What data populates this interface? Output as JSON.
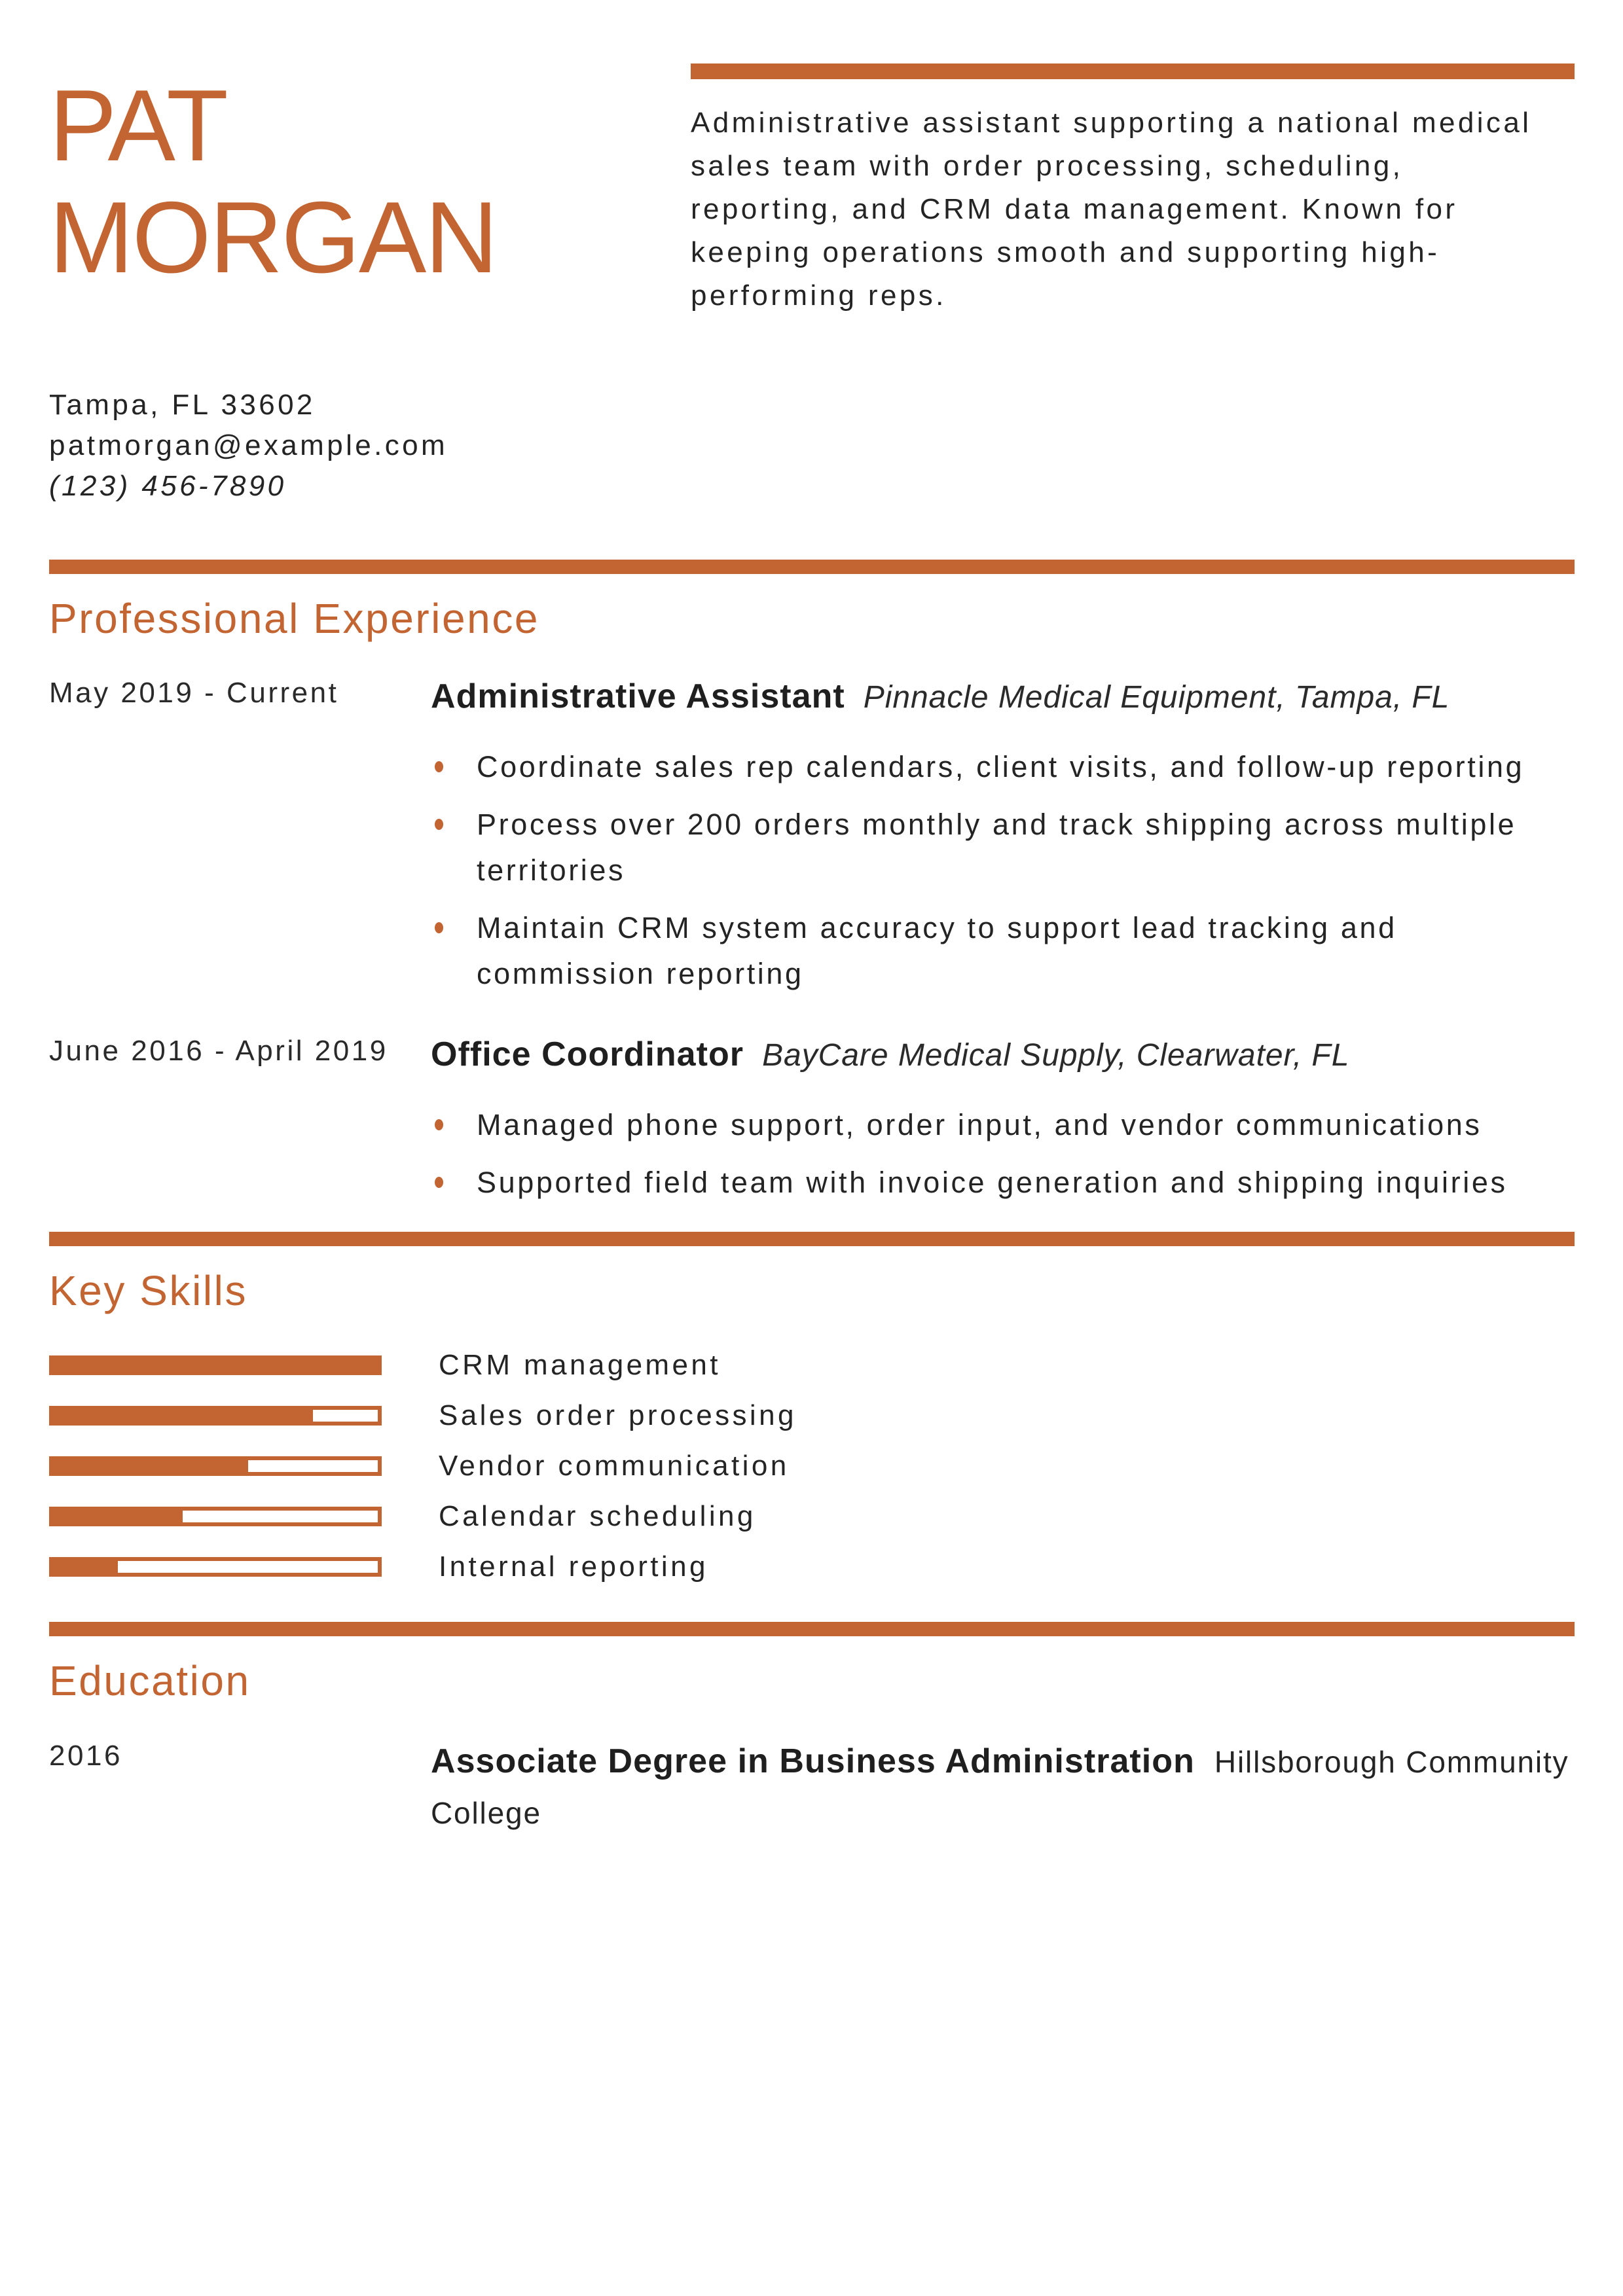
{
  "accent_color": "#C26532",
  "header": {
    "name_line1": "PAT",
    "name_line2": "MORGAN",
    "summary": "Administrative assistant supporting a national medical sales team with order processing, scheduling, reporting, and CRM data management. Known for keeping operations smooth and supporting high-performing reps.",
    "contact": {
      "location": "Tampa, FL 33602",
      "email": "patmorgan@example.com",
      "phone": "(123) 456-7890"
    }
  },
  "experience": {
    "heading": "Professional Experience",
    "jobs": [
      {
        "dates": "May 2019 - Current",
        "title": "Administrative Assistant",
        "company": "Pinnacle Medical Equipment, Tampa, FL",
        "bullets": [
          "Coordinate sales rep calendars, client visits, and follow-up reporting",
          "Process over 200 orders monthly and track shipping across multiple territories",
          "Maintain CRM system accuracy to support lead tracking and commission reporting"
        ]
      },
      {
        "dates": "June 2016 - April 2019",
        "title": "Office Coordinator",
        "company": "BayCare Medical Supply, Clearwater, FL",
        "bullets": [
          "Managed phone support, order input, and vendor communications",
          "Supported field team with invoice generation and shipping inquiries"
        ]
      }
    ]
  },
  "skills": {
    "heading": "Key Skills",
    "items": [
      {
        "label": "CRM management",
        "level_percent": 100
      },
      {
        "label": "Sales order processing",
        "level_percent": 80
      },
      {
        "label": "Vendor communication",
        "level_percent": 60
      },
      {
        "label": "Calendar scheduling",
        "level_percent": 40
      },
      {
        "label": "Internal reporting",
        "level_percent": 20
      }
    ]
  },
  "education": {
    "heading": "Education",
    "entries": [
      {
        "year": "2016",
        "degree": "Associate Degree in Business Administration",
        "school": "Hillsborough Community College"
      }
    ]
  }
}
